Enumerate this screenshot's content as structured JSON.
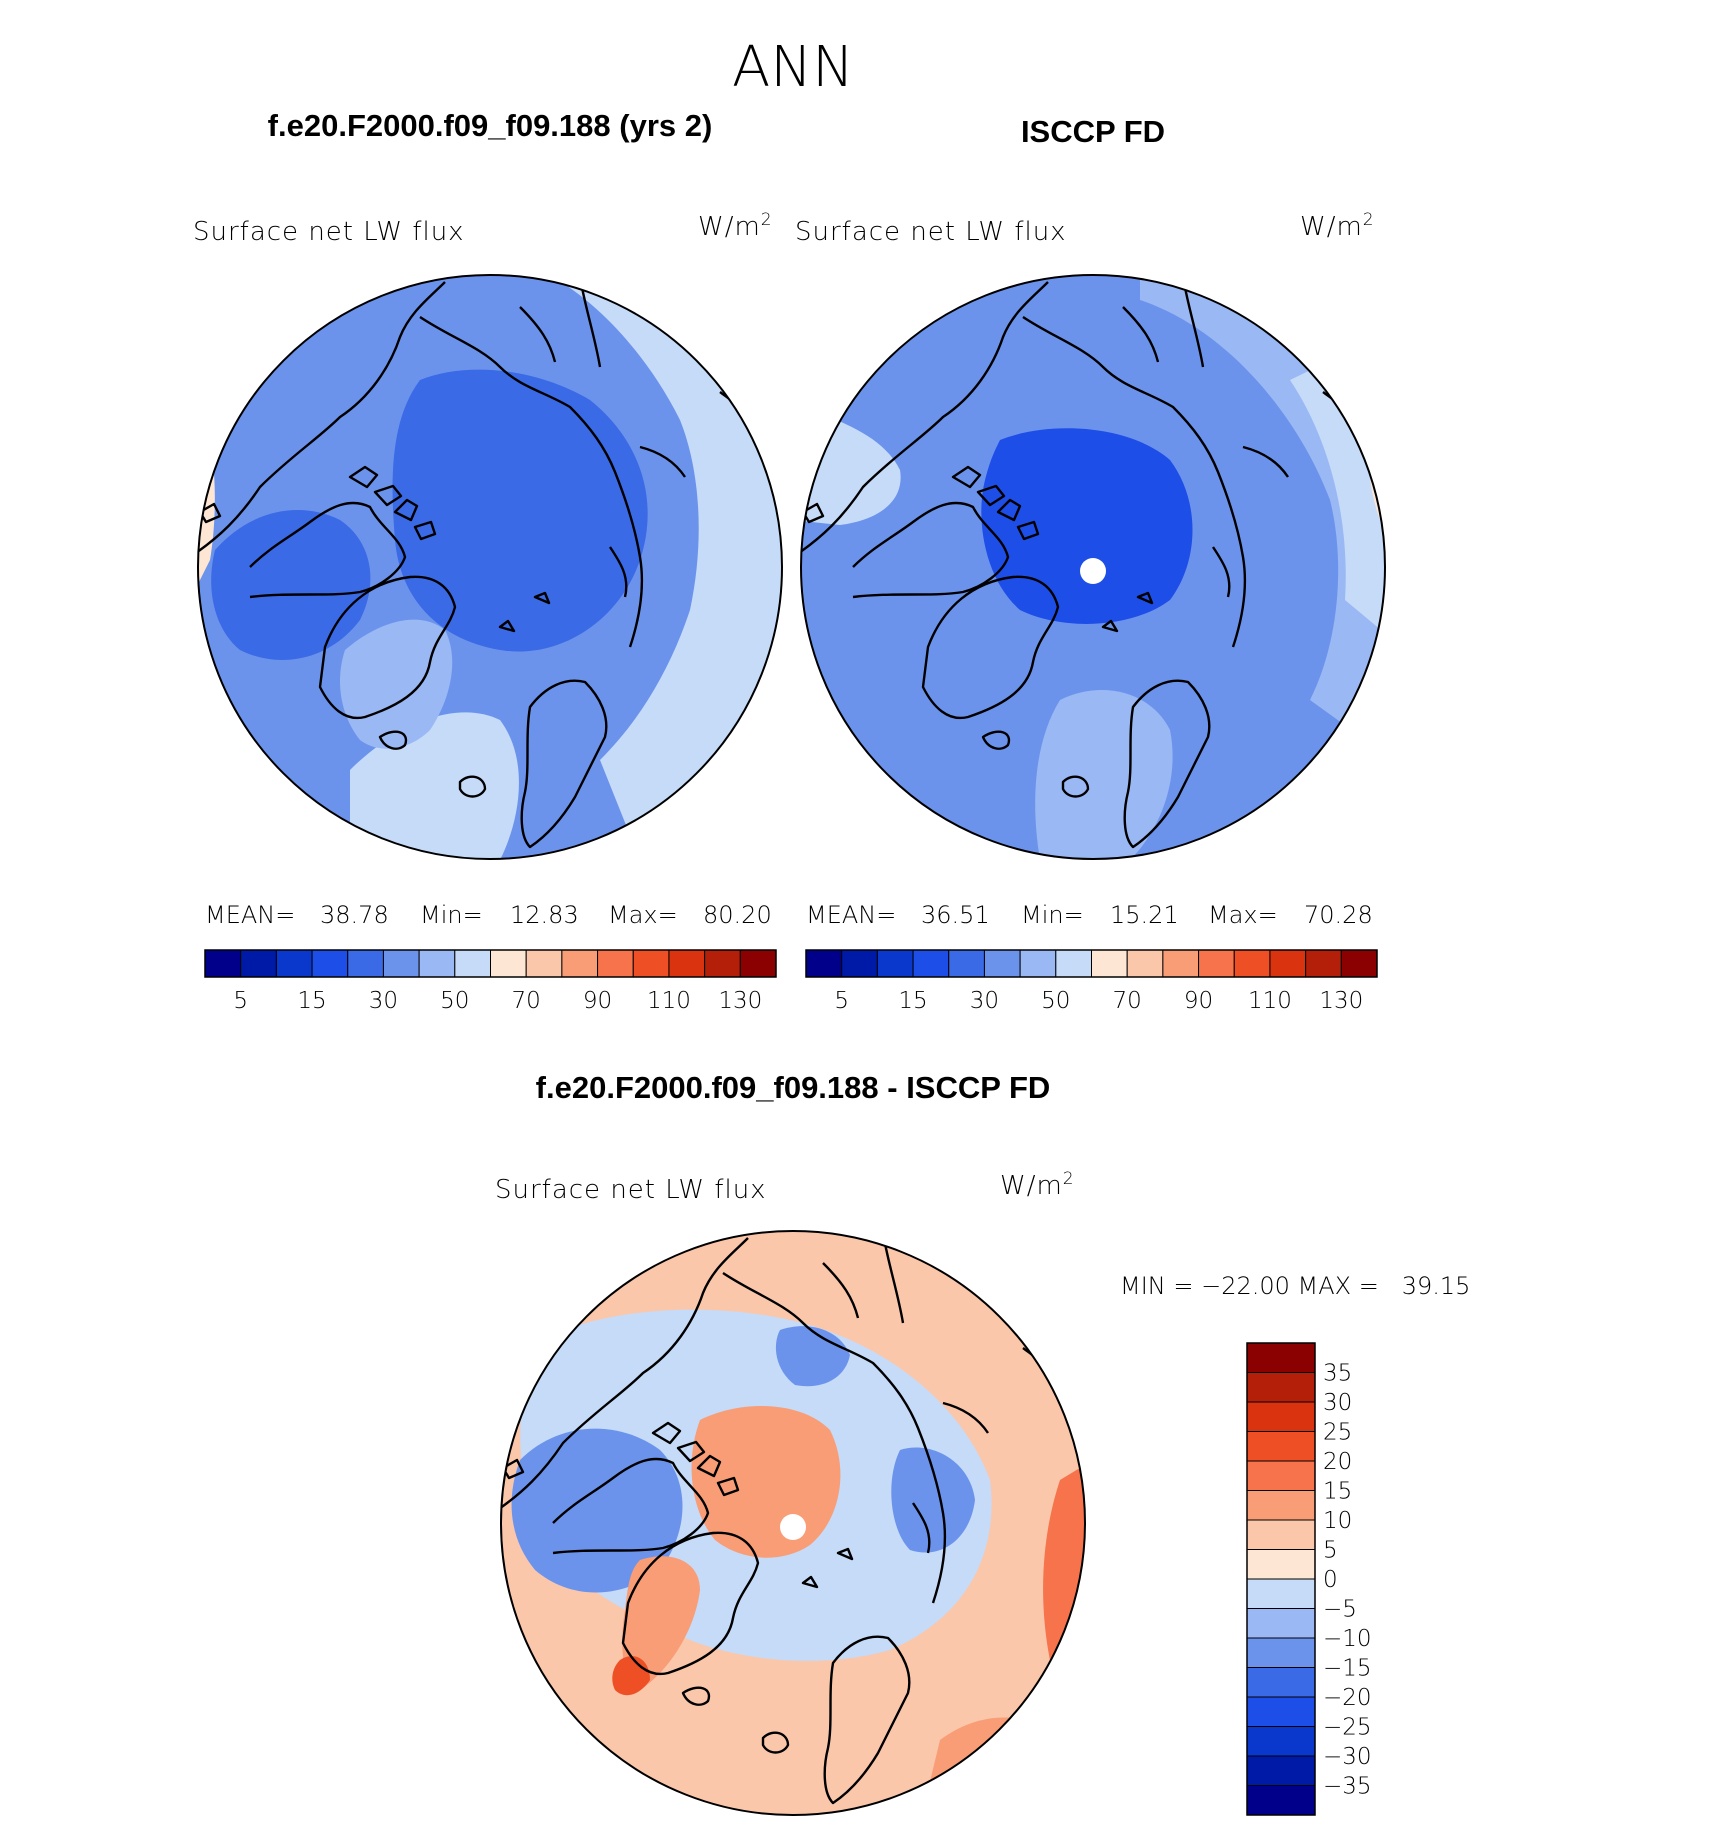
{
  "figure_title": "ANN",
  "chart_data": [
    {
      "type": "heatmap",
      "panel": "model",
      "title": "f.e20.F2000.f09_f09.188 (yrs 2)",
      "variable": "Surface net LW flux",
      "units": "W/m",
      "units_sup": "2",
      "projection": "north polar stereographic",
      "stats": {
        "mean_label": "MEAN=",
        "mean": "38.78",
        "min_label": "Min=",
        "min": "12.83",
        "max_label": "Max=",
        "max": "80.20"
      },
      "colorbar": {
        "orientation": "horizontal",
        "colors": [
          "#00008b",
          "#001aa8",
          "#0a37cc",
          "#1e4ee8",
          "#3a6ae6",
          "#6c93ec",
          "#9ab8f4",
          "#c5dbf8",
          "#fde7d4",
          "#fbc7ab",
          "#f99d76",
          "#f6734b",
          "#ee4f25",
          "#d9330f",
          "#b31f08",
          "#8b0000"
        ],
        "tick_labels": [
          "5",
          "15",
          "30",
          "50",
          "70",
          "90",
          "110",
          "130"
        ]
      },
      "regions": [
        {
          "name": "background",
          "color": "#6c93ec"
        },
        {
          "name": "central arctic",
          "color": "#3a6ae6"
        },
        {
          "name": "canadian archipelago",
          "color": "#3a6ae6"
        },
        {
          "name": "greenland",
          "color": "#9ab8f4"
        },
        {
          "name": "north atlantic",
          "color": "#c5dbf8"
        },
        {
          "name": "north pacific",
          "color": "#c5dbf8"
        },
        {
          "name": "subtropical fringe",
          "color": "#fde7d4"
        }
      ]
    },
    {
      "type": "heatmap",
      "panel": "observations",
      "title": "ISCCP FD",
      "variable": "Surface net LW flux",
      "units": "W/m",
      "units_sup": "2",
      "projection": "north polar stereographic",
      "stats": {
        "mean_label": "MEAN=",
        "mean": "36.51",
        "min_label": "Min=",
        "min": "15.21",
        "max_label": "Max=",
        "max": "70.28"
      },
      "colorbar": {
        "orientation": "horizontal",
        "colors": [
          "#00008b",
          "#001aa8",
          "#0a37cc",
          "#1e4ee8",
          "#3a6ae6",
          "#6c93ec",
          "#9ab8f4",
          "#c5dbf8",
          "#fde7d4",
          "#fbc7ab",
          "#f99d76",
          "#f6734b",
          "#ee4f25",
          "#d9330f",
          "#b31f08",
          "#8b0000"
        ],
        "tick_labels": [
          "5",
          "15",
          "30",
          "50",
          "70",
          "90",
          "110",
          "130"
        ]
      },
      "regions": [
        {
          "name": "background",
          "color": "#6c93ec"
        },
        {
          "name": "central arctic",
          "color": "#1e4ee8"
        },
        {
          "name": "siberia / europe",
          "color": "#9ab8f4"
        },
        {
          "name": "north pacific rim",
          "color": "#c5dbf8"
        },
        {
          "name": "pole (missing data)",
          "color": "#ffffff"
        }
      ]
    },
    {
      "type": "heatmap",
      "panel": "difference",
      "title": "f.e20.F2000.f09_f09.188 - ISCCP FD",
      "variable": "Surface net LW flux",
      "units": "W/m",
      "units_sup": "2",
      "projection": "north polar stereographic",
      "stats": {
        "text": "MIN = −22.00 MAX =   39.15",
        "min": -22.0,
        "max": 39.15
      },
      "colorbar": {
        "orientation": "vertical",
        "colors_top_to_bottom": [
          "#8b0000",
          "#b31f08",
          "#d9330f",
          "#ee4f25",
          "#f6734b",
          "#f99d76",
          "#fbc7ab",
          "#fde7d4",
          "#c5dbf8",
          "#9ab8f4",
          "#6c93ec",
          "#3a6ae6",
          "#1e4ee8",
          "#0a37cc",
          "#001aa8",
          "#00008b"
        ],
        "tick_labels_top_to_bottom": [
          "35",
          "30",
          "25",
          "20",
          "15",
          "10",
          "5",
          "0",
          "−5",
          "−10",
          "−15",
          "−20",
          "−25",
          "−30",
          "−35"
        ]
      },
      "regions": [
        {
          "name": "background",
          "color": "#fbc7ab"
        },
        {
          "name": "arctic ring",
          "color": "#c5dbf8"
        },
        {
          "name": "central arctic",
          "color": "#f99d76"
        },
        {
          "name": "canadian archipelago",
          "color": "#6c93ec"
        },
        {
          "name": "barents sea",
          "color": "#6c93ec"
        },
        {
          "name": "greenland tip",
          "color": "#ee4f25"
        },
        {
          "name": "subtropical fringe",
          "color": "#f6734b"
        },
        {
          "name": "pole (missing data)",
          "color": "#ffffff"
        }
      ]
    }
  ]
}
